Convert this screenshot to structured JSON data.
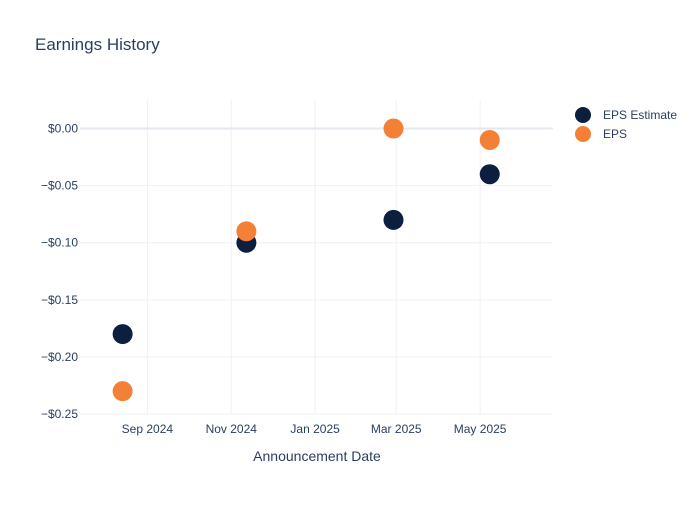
{
  "chart_data": {
    "type": "scatter",
    "title": "Earnings History",
    "xlabel": "Announcement Date",
    "ylabel": "",
    "x_axis_type": "date",
    "xlim": [
      "2024-07-14",
      "2025-06-23"
    ],
    "ylim": [
      -0.25,
      0.025
    ],
    "x_ticks": [
      {
        "value": "2024-09-01",
        "label": "Sep 2024"
      },
      {
        "value": "2024-11-01",
        "label": "Nov 2024"
      },
      {
        "value": "2025-01-01",
        "label": "Jan 2025"
      },
      {
        "value": "2025-03-01",
        "label": "Mar 2025"
      },
      {
        "value": "2025-05-01",
        "label": "May 2025"
      }
    ],
    "y_ticks": [
      {
        "value": 0,
        "label": "$0.00"
      },
      {
        "value": -0.05,
        "label": "−$0.05"
      },
      {
        "value": -0.1,
        "label": "−$0.10"
      },
      {
        "value": -0.15,
        "label": "−$0.15"
      },
      {
        "value": -0.2,
        "label": "−$0.20"
      },
      {
        "value": -0.25,
        "label": "−$0.25"
      }
    ],
    "grid": true,
    "legend_position": "top-right",
    "series": [
      {
        "name": "EPS Estimate",
        "color": "#0d1f3f",
        "points": [
          {
            "x": "2024-08-14",
            "y": -0.18
          },
          {
            "x": "2024-11-12",
            "y": -0.1
          },
          {
            "x": "2025-02-27",
            "y": -0.08
          },
          {
            "x": "2025-05-08",
            "y": -0.04
          }
        ]
      },
      {
        "name": "EPS",
        "color": "#f47f36",
        "points": [
          {
            "x": "2024-08-14",
            "y": -0.23
          },
          {
            "x": "2024-11-12",
            "y": -0.09
          },
          {
            "x": "2025-02-27",
            "y": 0.0
          },
          {
            "x": "2025-05-08",
            "y": -0.01
          }
        ]
      }
    ]
  }
}
